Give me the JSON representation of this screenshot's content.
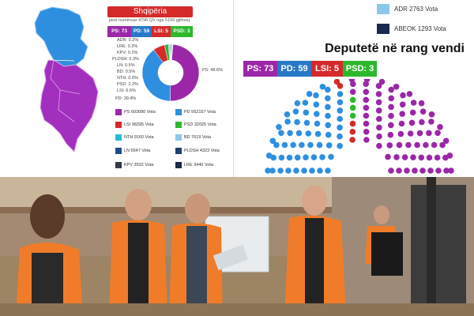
{
  "left": {
    "title": "Shqipëria",
    "subinfo": "janë numëruar 4796 QV nga 5199 gjithsej.",
    "tags": [
      {
        "label": "PS: 73",
        "color": "#9b27a8"
      },
      {
        "label": "PD: 59",
        "color": "#2878c8"
      },
      {
        "label": "LSI: 5",
        "color": "#d62a2a"
      },
      {
        "label": "PSD: 3",
        "color": "#2eb82e"
      }
    ],
    "donut_labels": [
      "ADR: 0.2%",
      "LRE: 0.2%",
      "KPV: 0.2%",
      "PLDSH: 0.3%",
      "LN: 0.5%",
      "BD: 0.5%",
      "NTH: 0.6%",
      "PSD: 2.2%",
      "LSI: 6.6%",
      "PD: 39.4%"
    ],
    "ps_label": "PS: 48.6%",
    "legend": [
      {
        "label": "PS 693080 Vota",
        "color": "#9b27a8"
      },
      {
        "label": "PD 562157 Vota",
        "color": "#2e8fe0"
      },
      {
        "label": "LSI 98395 Vota",
        "color": "#d62a2a"
      },
      {
        "label": "PSD 32025 Vota",
        "color": "#2eb82e"
      },
      {
        "label": "NTH 9160 Vota",
        "color": "#23bcd4"
      },
      {
        "label": "BD 7619 Vota",
        "color": "#8cc8ea"
      },
      {
        "label": "LN 6547 Vota",
        "color": "#1d4e89"
      },
      {
        "label": "PLDSH 4323 Vota",
        "color": "#1f3d6e"
      },
      {
        "label": "KPV 3532 Vota",
        "color": "#333b4a"
      },
      {
        "label": "LRE 3440 Vota",
        "color": "#1a2a45"
      }
    ]
  },
  "right": {
    "legend": [
      {
        "label": "ADR  2763 Vota",
        "color": "#8cc8ea"
      },
      {
        "label": "ABEOK  1293 Vota",
        "color": "#1a2a4f"
      }
    ],
    "header": "Deputetë në rang vendi",
    "tags": [
      {
        "label": "PS: 73",
        "color": "#9b27a8"
      },
      {
        "label": "PD: 59",
        "color": "#2878c8"
      },
      {
        "label": "LSI: 5",
        "color": "#d62a2a"
      },
      {
        "label": "PSD: 3",
        "color": "#2eb82e"
      }
    ]
  },
  "chart_data": [
    {
      "type": "pie",
      "categories": [
        "PS",
        "PD",
        "LSI",
        "PSD",
        "NTH",
        "BD",
        "LN",
        "PLDSH",
        "KPV",
        "LRE",
        "ADR"
      ],
      "values": [
        48.6,
        39.4,
        6.6,
        2.2,
        0.6,
        0.5,
        0.5,
        0.3,
        0.2,
        0.2,
        0.2
      ]
    },
    {
      "type": "bar",
      "categories": [
        "PS",
        "PD",
        "LSI",
        "PSD"
      ],
      "values": [
        73,
        59,
        5,
        3
      ]
    }
  ]
}
